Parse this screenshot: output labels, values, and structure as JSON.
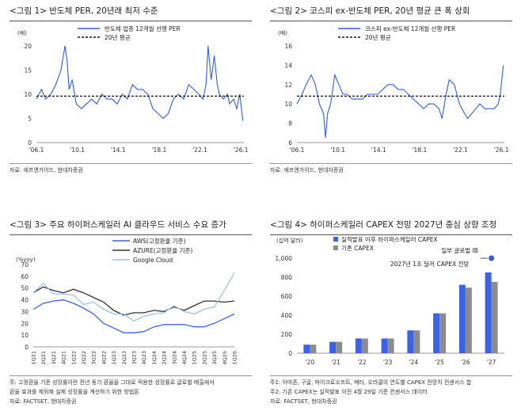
{
  "panels": {
    "p1": {
      "title": "<그림 1> 반도체 PER, 20년래 최저 수준",
      "source": "자료: 에프앤가이드, 현대차증권"
    },
    "p2": {
      "title": "<그림 2> 코스피 ex-반도체 PER, 20년 평균 큰 폭 상회",
      "source": "자료: 에프앤가이드, 현대차증권"
    },
    "p3": {
      "title": "<그림 3> 주요 하이퍼스케일러 AI 클라우드 서비스 수요 증가",
      "notes": [
        "주: 고정환율 기준 성장률이란 전년 동기 환율을 그대로 적용한 성장률로 글로벌 매출에서",
        "환율 효과를 제외해 실제 성장률을 계산하기 위한 방법론",
        "자료: FACTSET, 현대차증권"
      ]
    },
    "p4": {
      "title": "<그림 4> 하이퍼스케일러 CAPEX 전망 2027년 중심 상향 조정",
      "notes": [
        "주1: 아마존, 구글, 마이크로소프트, 메타, 오라클의 연도별 CAPEX 전망치 컨센서스 합",
        "주2: 기존 CAPEX는 실적발표 이전 4월 29일 기준 컨센서스 데이터",
        "자료: FACTSET, 현대차증권"
      ]
    }
  },
  "colors": {
    "blue": "#2f5fe0",
    "dark": "#333333",
    "light_blue": "#9ec3ea",
    "gray": "#8c8c8c",
    "bar_blue": "#3a63e8"
  },
  "chart_data": [
    {
      "type": "line",
      "title": "<그림 1> 반도체 PER, 20년래 최저 수준",
      "ylabel": "(배)",
      "ylim": [
        0,
        20
      ],
      "yticks": [
        "0",
        "5",
        "10",
        "15",
        "20"
      ],
      "xlim": [
        2006.1,
        2026.4
      ],
      "xticks": [
        "'06.1",
        "'10.1",
        "'14.1",
        "'18.1",
        "'22.1",
        "'26.1"
      ],
      "series": [
        {
          "name": "반도체 업종 12개월 선행 PER",
          "x": [
            2006.1,
            2006.6,
            2007.0,
            2007.5,
            2008.0,
            2008.5,
            2008.9,
            2009.1,
            2009.3,
            2009.6,
            2010.0,
            2010.5,
            2011.0,
            2011.5,
            2012.0,
            2012.5,
            2013.0,
            2013.5,
            2014.0,
            2014.5,
            2015.0,
            2015.5,
            2016.0,
            2016.5,
            2017.0,
            2017.5,
            2018.0,
            2018.5,
            2019.0,
            2019.5,
            2020.0,
            2020.5,
            2021.0,
            2021.5,
            2022.0,
            2022.4,
            2022.7,
            2022.9,
            2023.2,
            2023.5,
            2023.8,
            2024.0,
            2024.4,
            2024.8,
            2025.0,
            2025.4,
            2025.7,
            2026.0,
            2026.3
          ],
          "y": [
            9,
            11,
            9,
            10,
            12,
            15,
            20,
            17,
            11,
            13,
            8,
            7,
            8,
            9,
            8,
            10,
            9,
            9,
            8,
            10,
            9,
            12,
            11,
            11,
            10,
            7,
            6,
            5,
            6,
            9,
            10,
            9,
            12,
            11,
            10,
            9,
            12,
            20,
            13,
            18,
            12,
            10,
            9,
            10,
            8,
            9,
            7,
            10,
            4.5
          ]
        },
        {
          "name": "20년 평균",
          "x": [
            2006.1,
            2026.4
          ],
          "y": [
            9.6,
            9.6
          ]
        }
      ]
    },
    {
      "type": "line",
      "title": "<그림 2> 코스피 ex-반도체 PER, 20년 평균 큰 폭 상회",
      "ylabel": "(배)",
      "ylim": [
        6,
        16
      ],
      "yticks": [
        "6",
        "8",
        "10",
        "12",
        "14",
        "16"
      ],
      "xlim": [
        2006.1,
        2026.4
      ],
      "xticks": [
        "'06.1",
        "'10.1",
        "'14.1",
        "'18.1",
        "'22.1",
        "'26.1"
      ],
      "series": [
        {
          "name": "코스피 ex-반도체 12개월 선행 PER",
          "x": [
            2006.1,
            2006.6,
            2007.0,
            2007.5,
            2007.9,
            2008.3,
            2008.7,
            2008.9,
            2009.1,
            2009.4,
            2009.8,
            2010.2,
            2010.6,
            2011.0,
            2011.5,
            2012.0,
            2012.5,
            2013.0,
            2013.5,
            2014.0,
            2014.5,
            2015.0,
            2015.5,
            2016.0,
            2016.5,
            2017.0,
            2017.5,
            2018.0,
            2018.5,
            2019.0,
            2019.5,
            2020.0,
            2020.3,
            2020.7,
            2021.0,
            2021.5,
            2022.0,
            2022.5,
            2022.8,
            2023.2,
            2023.6,
            2024.0,
            2024.5,
            2025.0,
            2025.4,
            2025.8,
            2026.0,
            2026.2,
            2026.3
          ],
          "y": [
            10,
            11,
            12,
            13,
            12,
            10,
            9,
            6.5,
            9,
            10,
            13,
            12,
            11,
            11,
            10.5,
            10.5,
            10.5,
            11,
            11,
            11,
            11.5,
            12,
            12,
            11.5,
            11.5,
            11,
            10.5,
            10,
            9.5,
            10,
            10,
            9.5,
            8.5,
            11,
            12.5,
            12,
            10,
            9,
            8.5,
            9,
            9.5,
            10,
            9.5,
            9.5,
            9.5,
            10,
            11,
            13,
            14
          ]
        },
        {
          "name": "20년 평균",
          "x": [
            2006.1,
            2026.4
          ],
          "y": [
            10.8,
            10.8
          ]
        }
      ]
    },
    {
      "type": "line",
      "title": "<그림 3> 주요 하이퍼스케일러 AI 클라우드 서비스 수요 증가",
      "ylabel": "(%yoy)",
      "ylim": [
        0,
        70
      ],
      "yticks": [
        "0",
        "10",
        "20",
        "30",
        "40",
        "50",
        "60",
        "70"
      ],
      "categories": [
        "1Q21",
        "2Q21",
        "3Q21",
        "4Q21",
        "1Q22",
        "2Q22",
        "3Q22",
        "4Q22",
        "1Q23",
        "2Q23",
        "3Q23",
        "4Q23",
        "1Q24",
        "2Q24",
        "3Q24",
        "4Q24",
        "1Q25",
        "2Q25",
        "3Q25",
        "4Q25",
        "1Q26"
      ],
      "series": [
        {
          "name": "AWS(고정환율 기준)",
          "values": [
            32,
            37,
            39,
            40,
            37,
            33,
            28,
            20,
            16,
            12,
            12,
            13,
            17,
            19,
            19,
            19,
            17,
            17,
            20,
            24,
            28
          ]
        },
        {
          "name": "AZURE(고정환율 기준)",
          "values": [
            46,
            51,
            48,
            46,
            49,
            46,
            42,
            38,
            31,
            27,
            29,
            29,
            31,
            30,
            34,
            31,
            35,
            39,
            39,
            38,
            39
          ]
        },
        {
          "name": "Google Cloud",
          "values": [
            46,
            54,
            45,
            45,
            44,
            36,
            38,
            32,
            28,
            28,
            22,
            26,
            28,
            29,
            35,
            30,
            28,
            32,
            34,
            48,
            63
          ]
        }
      ]
    },
    {
      "type": "bar",
      "title": "<그림 4> 하이퍼스케일러 CAPEX 전망 2027년 중심 상향 조정",
      "ylabel": "(십억 달러)",
      "ylim": [
        0,
        1000
      ],
      "yticks": [
        "0",
        "200",
        "400",
        "600",
        "800",
        "1,000"
      ],
      "categories": [
        "'20",
        "'21",
        "'22",
        "'23",
        "'24",
        "'25",
        "'26",
        "'27"
      ],
      "series": [
        {
          "name": "실적발표 이후 하이퍼스케일러 CAPEX",
          "values": [
            90,
            120,
            155,
            155,
            240,
            420,
            720,
            850
          ]
        },
        {
          "name": "기존 CAPEX",
          "values": [
            90,
            120,
            155,
            155,
            240,
            420,
            690,
            750
          ]
        }
      ],
      "annotation": {
        "text_1": "일부 글로벌 IB",
        "text_2": "2027년 1조 달러 CAPEX 전망",
        "value": 1000
      }
    }
  ]
}
